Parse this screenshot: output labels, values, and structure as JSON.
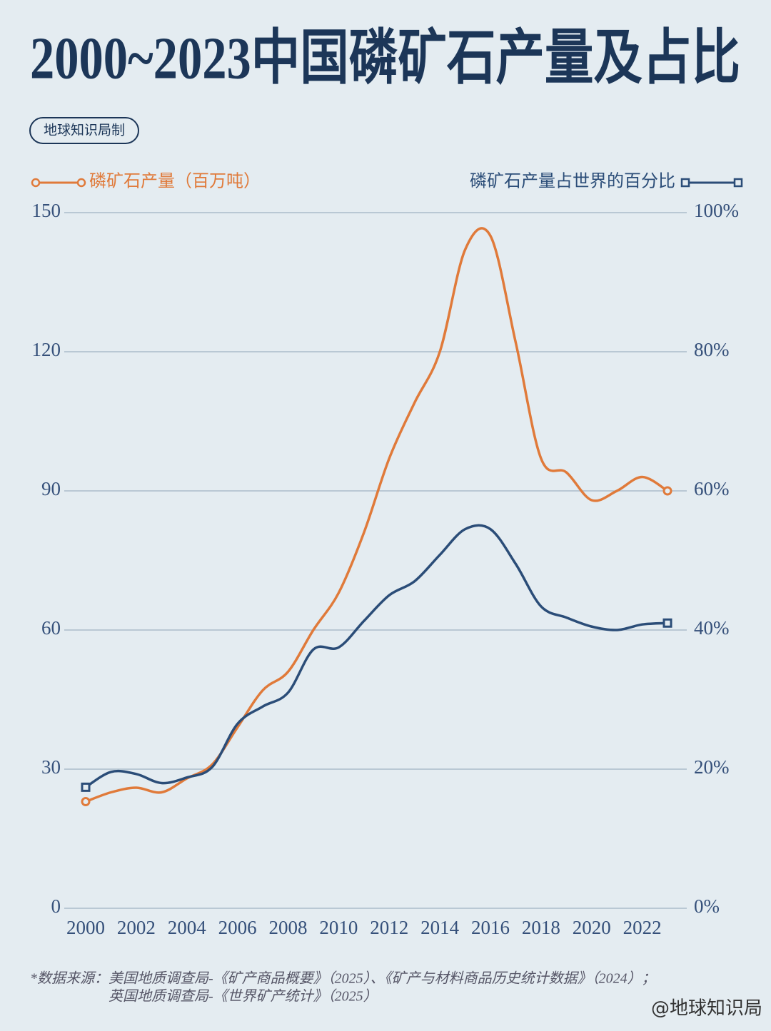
{
  "chart_data": {
    "type": "line",
    "title": "2000~2023中国磷矿石产量及占比",
    "subtitle": "地球知识局制",
    "x": [
      2000,
      2001,
      2002,
      2003,
      2004,
      2005,
      2006,
      2007,
      2008,
      2009,
      2010,
      2011,
      2012,
      2013,
      2014,
      2015,
      2016,
      2017,
      2018,
      2019,
      2020,
      2021,
      2022,
      2023
    ],
    "xlim": [
      2000,
      2023
    ],
    "xticks": [
      2000,
      2002,
      2004,
      2006,
      2008,
      2010,
      2012,
      2014,
      2016,
      2018,
      2020,
      2022
    ],
    "ylim": [
      0,
      150
    ],
    "yticks": [
      0,
      30,
      60,
      90,
      120,
      150
    ],
    "y2lim": [
      0,
      100
    ],
    "y2ticks": [
      {
        "value": 0,
        "label": "0%"
      },
      {
        "value": 20,
        "label": "20%"
      },
      {
        "value": 40,
        "label": "40%"
      },
      {
        "value": 60,
        "label": "60%"
      },
      {
        "value": 80,
        "label": "80%"
      },
      {
        "value": 100,
        "label": "100%"
      }
    ],
    "grid": true,
    "series": [
      {
        "name": "磷矿石产量（百万吨）",
        "color": "#e07a3a",
        "marker": "circle",
        "values": [
          23,
          25,
          26,
          25,
          28,
          31,
          39,
          47,
          51,
          60,
          68,
          81,
          97,
          109,
          120,
          142,
          145,
          122,
          97,
          94,
          88,
          90,
          93,
          90
        ]
      },
      {
        "name": "磷矿石产量占世界的百分比",
        "color": "#2b4d78",
        "marker": "square",
        "axis": "y2",
        "values": [
          17.4,
          19.6,
          19.3,
          18,
          18.8,
          20.3,
          26.5,
          29,
          31,
          37.2,
          37.5,
          41.3,
          45,
          47,
          50.8,
          54.5,
          54.5,
          49.5,
          43.4,
          41.8,
          40.5,
          40,
          40.8,
          41
        ]
      }
    ],
    "source": [
      "*数据来源：美国地质调查局-《矿产商品概要》（2025）、《矿产与材料商品历史统计数据》（2024）；",
      "英国地质调查局-《世界矿产统计》（2025）"
    ],
    "watermark": "@地球知识局"
  }
}
